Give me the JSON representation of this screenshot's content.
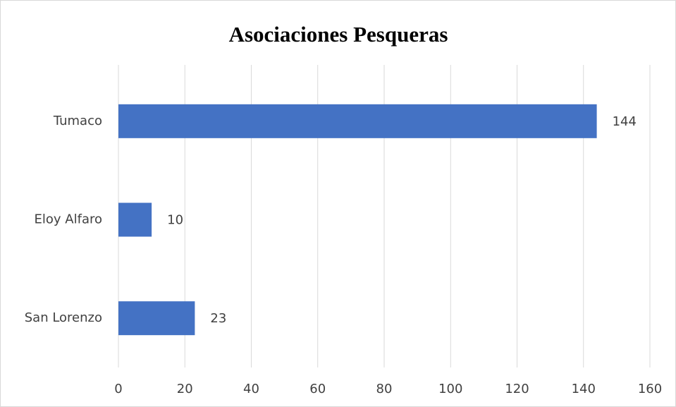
{
  "chart_data": {
    "type": "bar",
    "orientation": "horizontal",
    "title": "Asociaciones Pesqueras",
    "categories": [
      "Tumaco",
      "Eloy Alfaro",
      "San Lorenzo"
    ],
    "values": [
      144,
      10,
      23
    ],
    "color": "#4472c4",
    "xlim": [
      0,
      160
    ],
    "xticks": [
      0,
      20,
      40,
      60,
      80,
      100,
      120,
      140,
      160
    ],
    "grid": true,
    "data_labels": true
  }
}
